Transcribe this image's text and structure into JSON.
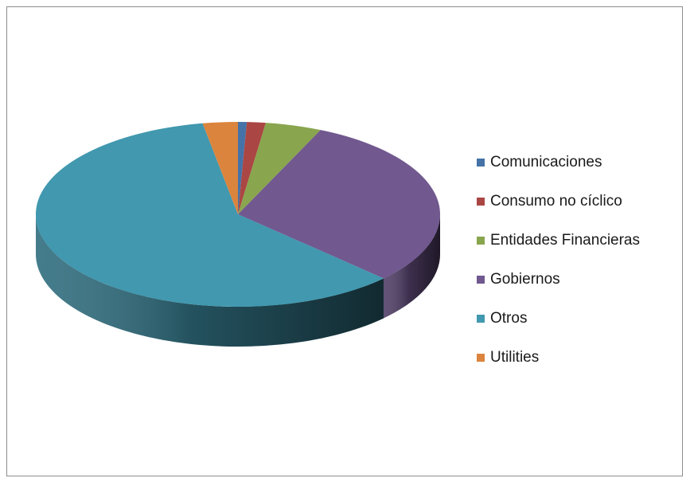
{
  "chart_data": {
    "type": "pie",
    "style": "3d",
    "title": "",
    "legend_position": "right",
    "categories": [
      "Comunicaciones",
      "Consumo no cíclico",
      "Entidades Financieras",
      "Gobiernos",
      "Otros",
      "Utilities"
    ],
    "values": [
      0.7,
      1.5,
      4.5,
      30.5,
      60.0,
      2.8
    ],
    "unit": "%",
    "colors": [
      "#4572a7",
      "#aa4643",
      "#89a54e",
      "#71588f",
      "#4198af",
      "#db843d"
    ],
    "start_angle_deg": 0,
    "direction": "clockwise"
  }
}
